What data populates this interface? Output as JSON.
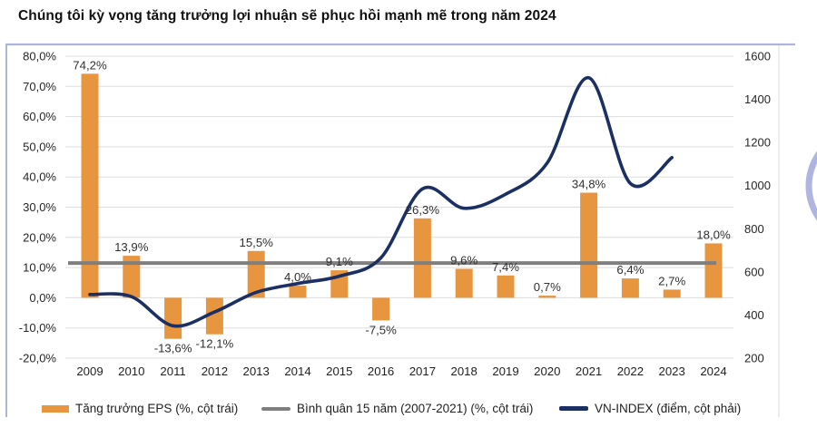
{
  "page": {
    "title": "Chúng tôi kỳ vọng tăng trưởng lợi nhuận sẽ phục hồi mạnh mẽ trong năm 2024"
  },
  "chart_data": {
    "type": "bar+line combo",
    "title": "Chúng tôi kỳ vọng tăng trưởng lợi nhuận sẽ phục hồi mạnh mẽ trong năm 2024",
    "categories": [
      "2009",
      "2010",
      "2011",
      "2012",
      "2013",
      "2014",
      "2015",
      "2016",
      "2017",
      "2018",
      "2019",
      "2020",
      "2021",
      "2022",
      "2023",
      "2024"
    ],
    "series": [
      {
        "name": "Tăng trưởng EPS (%, cột trái)",
        "type": "bar",
        "axis": "left",
        "unit": "%",
        "values": [
          74.2,
          13.9,
          -13.6,
          -12.1,
          15.5,
          4.0,
          9.1,
          -7.5,
          26.3,
          9.6,
          7.4,
          0.7,
          34.8,
          6.4,
          2.7,
          18.0
        ],
        "labels": [
          "74,2%",
          "13,9%",
          "-13,6%",
          "-12,1%",
          "15,5%",
          "4,0%",
          "9,1%",
          "-7,5%",
          "26,3%",
          "9,6%",
          "7,4%",
          "0,7%",
          "34,8%",
          "6,4%",
          "2,7%",
          "18,0%"
        ]
      },
      {
        "name": "Bình quân 15 năm (2007-2021) (%, cột trái)",
        "type": "reference-line",
        "axis": "left",
        "value": 11.5
      },
      {
        "name": "VN-INDEX (điểm, cột phải)",
        "type": "line",
        "axis": "right",
        "x_years": [
          "2009",
          "2010",
          "2011",
          "2012",
          "2013",
          "2014",
          "2015",
          "2016",
          "2017",
          "2018",
          "2019",
          "2020",
          "2021",
          "2022",
          "2023"
        ],
        "values": [
          495,
          485,
          350,
          414,
          505,
          546,
          580,
          665,
          985,
          895,
          960,
          1105,
          1500,
          1010,
          1130
        ]
      }
    ],
    "left_axis": {
      "ticks": [
        "80,0%",
        "70,0%",
        "60,0%",
        "50,0%",
        "40,0%",
        "30,0%",
        "20,0%",
        "10,0%",
        "0,0%",
        "-10,0%",
        "-20,0%"
      ],
      "min": -20,
      "max": 80,
      "grid": true
    },
    "right_axis": {
      "ticks": [
        "1600",
        "1400",
        "1200",
        "1000",
        "800",
        "600",
        "400",
        "200"
      ],
      "min": 200,
      "max": 1600,
      "grid": false
    },
    "legend": [
      {
        "swatch": "bar",
        "label": "Tăng trưởng EPS (%, cột trái)"
      },
      {
        "swatch": "gray-line",
        "label": "Bình quân 15 năm (2007-2021) (%, cột trái)"
      },
      {
        "swatch": "navy-line",
        "label": "VN-INDEX (điểm, cột phải)"
      }
    ],
    "legend_position": "bottom",
    "colors": {
      "bar_orange": "#E8953F",
      "vnindex_navy": "#1C2F63",
      "average_gray": "#7F7F7F",
      "gridline": "#DDDDDD",
      "axis_text": "#262626",
      "label_text": "#303030",
      "border_periwinkle": "#AFB3DF",
      "border_right_gray": "#E3E3E3",
      "arc_lavender": "#9BA1D8"
    }
  }
}
